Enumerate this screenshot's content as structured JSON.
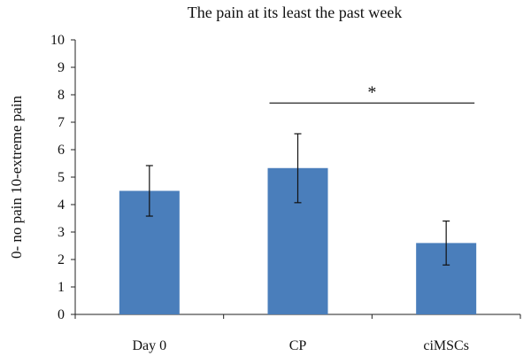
{
  "chart_data": {
    "type": "bar",
    "title": "The pain at its least the past week",
    "ylabel": "0- no pain 10-extreme pain",
    "xlabel": "",
    "categories": [
      "Day 0",
      "CP",
      "ciMSCs"
    ],
    "values": [
      4.5,
      5.33,
      2.6
    ],
    "error_lower": [
      3.58,
      4.07,
      1.8
    ],
    "error_upper": [
      5.42,
      6.58,
      3.4
    ],
    "ylim": [
      0,
      10
    ],
    "yticks": [
      "0",
      "1",
      "2",
      "3",
      "4",
      "5",
      "6",
      "7",
      "8",
      "9",
      "10"
    ],
    "grid": false,
    "bar_color": "#4a7ebb",
    "significance": {
      "from": "CP",
      "to": "ciMSCs",
      "label": "*",
      "y": 7.7
    }
  }
}
